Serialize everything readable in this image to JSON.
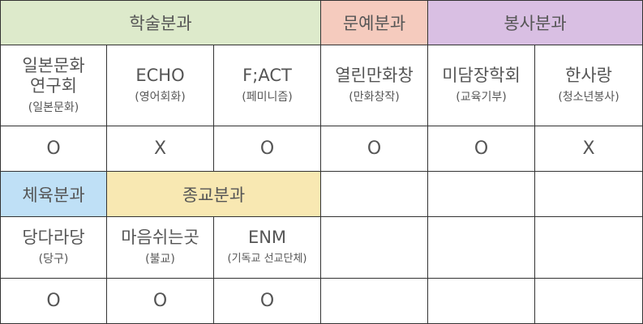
{
  "colors": {
    "academic": "#DDEACB",
    "arts": "#F5CBBE",
    "service": "#D9BFE3",
    "sports": "#BFE0F6",
    "religion": "#F8E8B2",
    "border": "#333333",
    "text": "#555555"
  },
  "sections": {
    "academic": "학술분과",
    "arts": "문예분과",
    "service": "봉사분과",
    "sports": "체육분과",
    "religion": "종교분과"
  },
  "row1": [
    {
      "name": "일본문화\n연구회",
      "sub": "(일본문화)",
      "value": "O"
    },
    {
      "name": "ECHO",
      "sub": "(영어회화)",
      "value": "X"
    },
    {
      "name": "F;ACT",
      "sub": "(페미니즘)",
      "value": "O"
    },
    {
      "name": "열린만화창",
      "sub": "(만화창작)",
      "value": "O"
    },
    {
      "name": "미담장학회",
      "sub": "(교육기부)",
      "value": "O"
    },
    {
      "name": "한사랑",
      "sub": "(청소년봉사)",
      "value": "X"
    }
  ],
  "row2": [
    {
      "name": "당다라당",
      "sub": "(당구)",
      "value": "O"
    },
    {
      "name": "마음쉬는곳",
      "sub": "(불교)",
      "value": "O"
    },
    {
      "name": "ENM",
      "sub": "(기독교 선교단체)",
      "value": "O"
    }
  ]
}
